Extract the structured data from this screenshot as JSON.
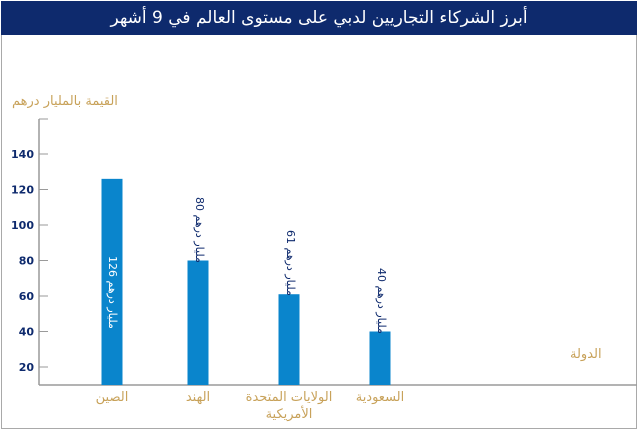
{
  "chart_data": {
    "type": "bar",
    "title": "أبرز الشركاء التجاريين لدبي على مستوى العالم في 9 أشهر",
    "ylabel": "القيمة بالمليار درهم",
    "xlabel": "الدولة",
    "categories": [
      "الصين",
      "الهند",
      "الولايات المتحدة الأمريكية",
      "السعودية"
    ],
    "values": [
      126,
      80,
      61,
      40
    ],
    "data_labels": [
      "126 مليار درهم",
      "80 مليار درهم",
      "61 مليار درهم",
      "40 مليار درهم"
    ],
    "yticks": [
      20,
      40,
      60,
      80,
      100,
      120,
      140
    ],
    "ylim": [
      10,
      150
    ],
    "grid": false,
    "colors": {
      "bar": "#0a85cc",
      "title_bg": "#0e2a6d",
      "label": "#c8a25a",
      "tick": "#0e2a6d"
    }
  }
}
